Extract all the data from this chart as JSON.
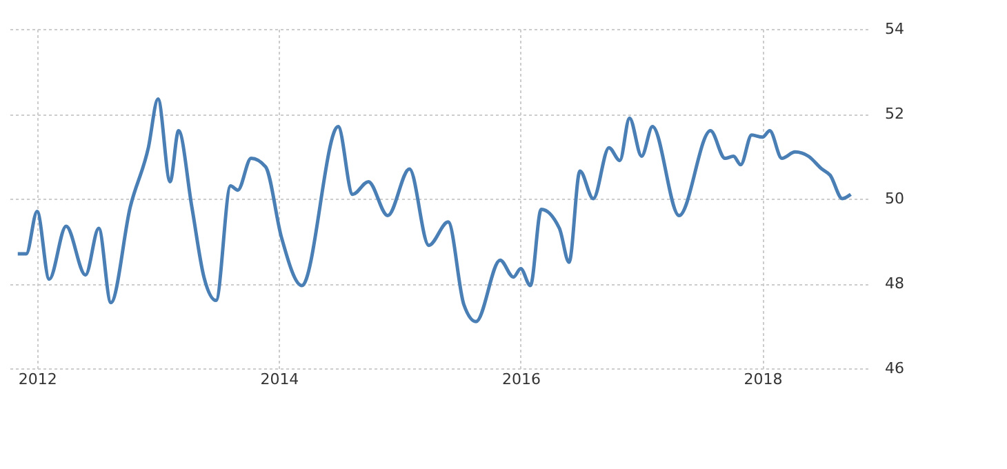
{
  "chart_data": {
    "type": "line",
    "x": [
      2011.84,
      2011.91,
      2012.0,
      2012.1,
      2012.24,
      2012.4,
      2012.51,
      2012.61,
      2012.77,
      2012.92,
      2013.0,
      2013.1,
      2013.17,
      2013.28,
      2013.38,
      2013.48,
      2013.6,
      2013.66,
      2013.77,
      2013.89,
      2014.02,
      2014.19,
      2014.49,
      2014.61,
      2014.74,
      2014.9,
      2015.08,
      2015.24,
      2015.4,
      2015.53,
      2015.63,
      2015.83,
      2015.94,
      2016.0,
      2016.08,
      2016.17,
      2016.32,
      2016.4,
      2016.49,
      2016.6,
      2016.73,
      2016.82,
      2016.9,
      2017.0,
      2017.09,
      2017.31,
      2017.57,
      2017.69,
      2017.76,
      2017.82,
      2017.91,
      2018.0,
      2018.06,
      2018.16,
      2018.27,
      2018.38,
      2018.49,
      2018.56,
      2018.66,
      2018.73
    ],
    "series": [
      {
        "color": "#4a7fb5",
        "values": [
          48.7,
          48.7,
          49.7,
          48.1,
          49.35,
          48.2,
          49.3,
          47.55,
          49.8,
          51.2,
          52.35,
          50.4,
          51.6,
          49.8,
          48.15,
          47.6,
          50.3,
          50.2,
          50.95,
          50.75,
          49.1,
          47.95,
          51.7,
          50.1,
          50.4,
          49.6,
          50.7,
          48.9,
          49.45,
          47.5,
          47.1,
          48.55,
          48.15,
          48.35,
          47.95,
          49.75,
          49.3,
          48.5,
          50.65,
          50.0,
          51.2,
          50.9,
          51.9,
          51.0,
          51.7,
          49.6,
          51.6,
          50.95,
          51.0,
          50.8,
          51.5,
          51.45,
          51.6,
          50.95,
          51.1,
          51.0,
          50.7,
          50.55,
          50.0,
          50.1
        ]
      }
    ],
    "xlim": [
      2011.75,
      2018.87
    ],
    "xticks": [
      2012,
      2014,
      2016,
      2018
    ],
    "ylim": [
      46,
      54
    ],
    "yticks": [
      46,
      48,
      50,
      52,
      54
    ],
    "grid": true,
    "line_style": "solid",
    "marker": "none"
  }
}
